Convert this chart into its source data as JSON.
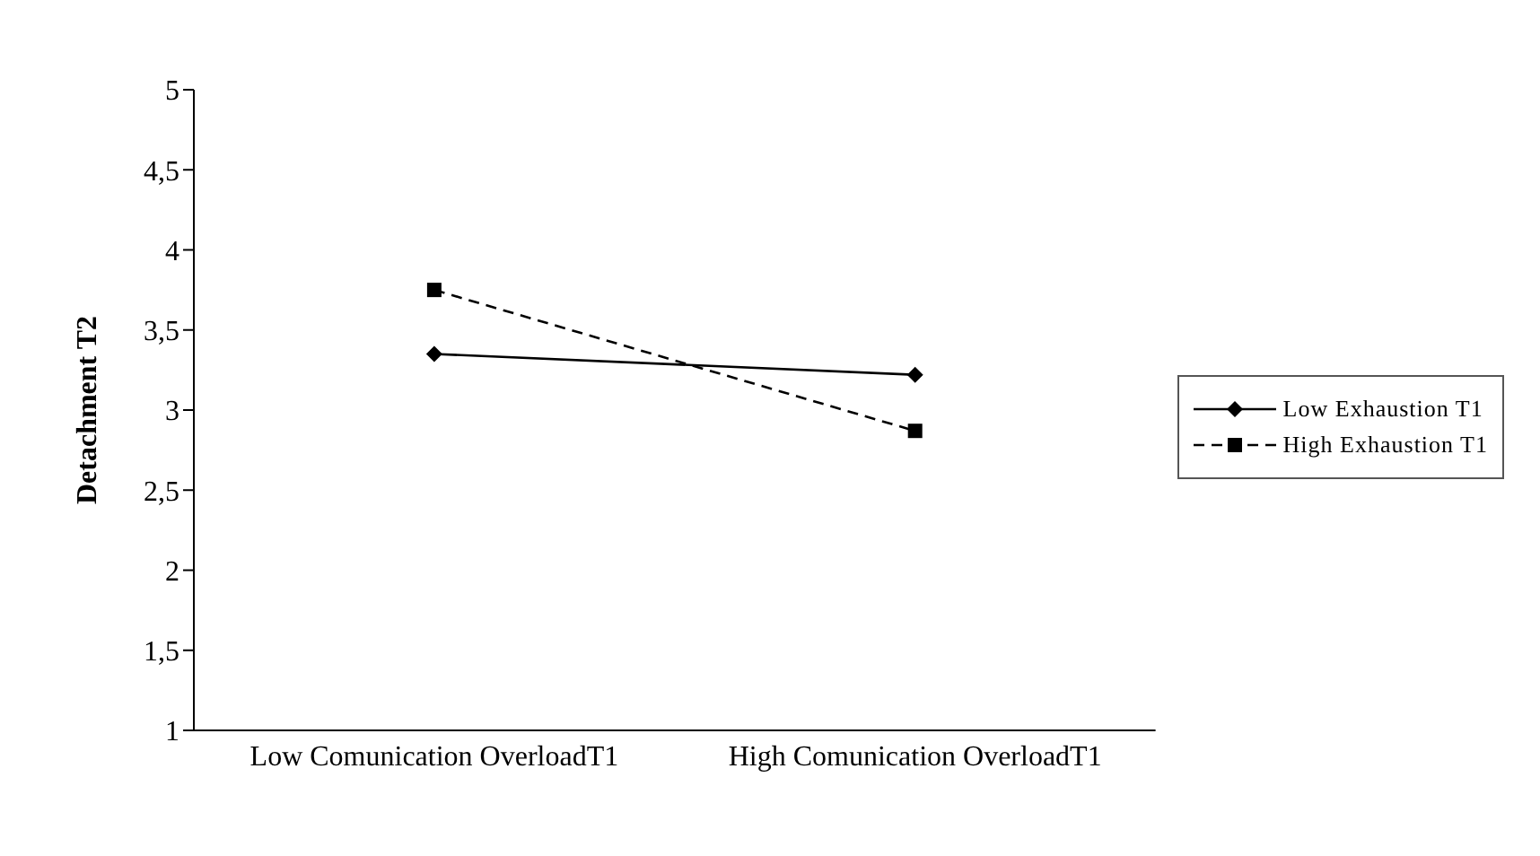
{
  "chart_data": {
    "type": "line",
    "ylabel": "Detachment T2",
    "categories": [
      "Low Comunication OverloadT1",
      "High Comunication OverloadT1"
    ],
    "series": [
      {
        "name": "Low Exhaustion T1",
        "color": "#000000",
        "values": [
          3.35,
          3.22
        ],
        "marker": "diamond",
        "line_style": "solid"
      },
      {
        "name": "High Exhaustion T1",
        "color": "#000000",
        "values": [
          3.75,
          2.87
        ],
        "marker": "square",
        "line_style": "dashed"
      }
    ],
    "ylim": [
      1,
      5
    ],
    "yticks": [
      1,
      {
        "value": 1.5,
        "label": "1,5"
      },
      2,
      {
        "value": 2.5,
        "label": "2,5"
      },
      3,
      {
        "value": 3.5,
        "label": "3,5"
      },
      4,
      {
        "value": 4.5,
        "label": "4,5"
      },
      5
    ],
    "grid": false,
    "legend": "right"
  }
}
